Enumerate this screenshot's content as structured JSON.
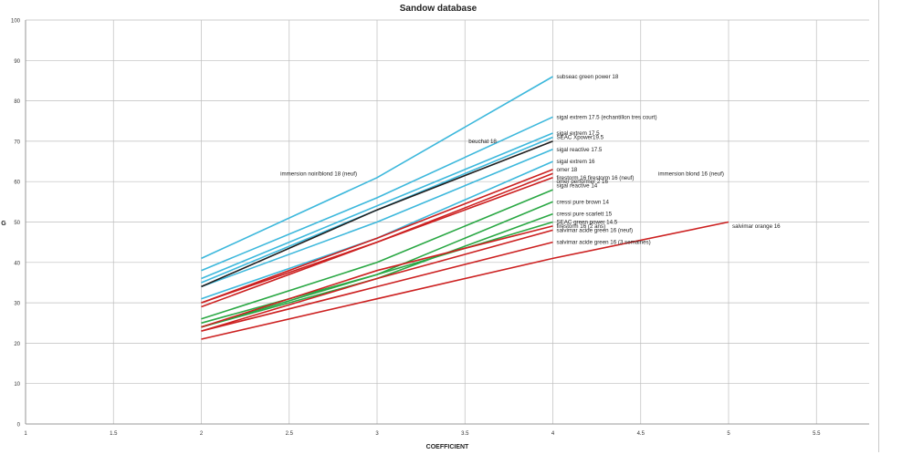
{
  "chart_data": {
    "type": "line",
    "title": "Sandow database",
    "xlabel": "COEFFICIENT",
    "ylabel": "G",
    "xlim": [
      1,
      5.8
    ],
    "ylim": [
      0,
      100
    ],
    "x_ticks": [
      1,
      1.5,
      2,
      2.5,
      3,
      3.5,
      4,
      4.5,
      5,
      5.5
    ],
    "x_tick_labels": [
      "1",
      "1.5",
      "2",
      "2.5",
      "3",
      "3.5",
      "4",
      "4.5",
      "5",
      "5.5"
    ],
    "y_ticks": [
      0,
      10,
      20,
      30,
      40,
      50,
      60,
      70,
      80,
      90,
      100
    ],
    "y_tick_labels": [
      "0",
      "10",
      "20",
      "30",
      "40",
      "50",
      "60",
      "70",
      "80",
      "90",
      "100"
    ],
    "grid": true,
    "legend": "none",
    "series": [
      {
        "name": "subseac green power 18",
        "color": "#3db8dc",
        "x": [
          2,
          3,
          4
        ],
        "y": [
          41,
          61,
          86
        ],
        "label_anchor": [
          4,
          86
        ]
      },
      {
        "name": "sigal extrem 17.5 (echantillon tres court)",
        "color": "#3db8dc",
        "x": [
          2,
          3,
          4
        ],
        "y": [
          38,
          56,
          76
        ],
        "label_anchor": [
          4,
          76
        ]
      },
      {
        "name": "sigal extrem 17.5",
        "color": "#3db8dc",
        "x": [
          2,
          3,
          4
        ],
        "y": [
          36,
          54,
          72
        ],
        "label_anchor": [
          4,
          72
        ]
      },
      {
        "name": "SEAC Xpower19.5",
        "color": "#3db8dc",
        "x": [
          2,
          3,
          4
        ],
        "y": [
          35,
          53,
          71
        ],
        "label_anchor": [
          4,
          71
        ]
      },
      {
        "name": "sigal reactive 17.5",
        "color": "#3db8dc",
        "x": [
          2,
          3,
          4
        ],
        "y": [
          34,
          50,
          68
        ],
        "label_anchor": [
          4,
          68
        ]
      },
      {
        "name": "sigal extrem 16",
        "color": "#3db8dc",
        "x": [
          2,
          3,
          4
        ],
        "y": [
          31,
          46,
          65
        ],
        "label_anchor": [
          4,
          65
        ]
      },
      {
        "name": "beuchat 18",
        "color": "#1f1f1f",
        "x": [
          2,
          3,
          4
        ],
        "y": [
          34,
          53,
          70
        ],
        "label_anchor": [
          3.5,
          70
        ]
      },
      {
        "name": "omer 18",
        "color": "#cc2020",
        "x": [
          2,
          3,
          4
        ],
        "y": [
          30,
          46,
          63
        ],
        "label_anchor": [
          4,
          63
        ]
      },
      {
        "name": "firestorm 16 firestorm 16 (neuf)",
        "color": "#cc2020",
        "x": [
          2,
          3,
          4
        ],
        "y": [
          30,
          45,
          62
        ],
        "label_anchor": [
          4,
          61
        ]
      },
      {
        "name": "omer performer 2 16",
        "color": "#cc2020",
        "x": [
          2,
          3,
          4
        ],
        "y": [
          29,
          45,
          61
        ],
        "label_anchor": [
          4,
          60
        ]
      },
      {
        "name": "sigal reactive 14",
        "color": "#2aa844",
        "x": [
          2,
          3,
          4
        ],
        "y": [
          26,
          40,
          58
        ],
        "label_anchor": [
          4,
          59
        ]
      },
      {
        "name": "cressi pure brown 14",
        "color": "#2aa844",
        "x": [
          2,
          3,
          4
        ],
        "y": [
          25,
          37,
          55
        ],
        "label_anchor": [
          4,
          55
        ]
      },
      {
        "name": "cressi pure scarlett 15",
        "color": "#2aa844",
        "x": [
          2,
          3,
          4
        ],
        "y": [
          24,
          36,
          52
        ],
        "label_anchor": [
          4,
          52
        ]
      },
      {
        "name": "SEAC green power 14.5",
        "color": "#2aa844",
        "x": [
          2,
          3,
          4
        ],
        "y": [
          24,
          37,
          50
        ],
        "label_anchor": [
          4,
          50
        ]
      },
      {
        "name": "firestorm 16 (2 ans)",
        "color": "#cc2020",
        "x": [
          2,
          3,
          4
        ],
        "y": [
          24,
          38,
          49
        ],
        "label_anchor": [
          4,
          49
        ]
      },
      {
        "name": "salvimar acide green 16 (neuf)",
        "color": "#cc2020",
        "x": [
          2,
          3,
          4
        ],
        "y": [
          23,
          36,
          48
        ],
        "label_anchor": [
          4,
          48
        ]
      },
      {
        "name": "salvimar acide green 16 (3 semaines)",
        "color": "#cc2020",
        "x": [
          2,
          3,
          4
        ],
        "y": [
          23,
          34,
          45
        ],
        "label_anchor": [
          4,
          45
        ]
      },
      {
        "name": "salvimar orange 16",
        "color": "#cc2020",
        "x": [
          2,
          3,
          4,
          5
        ],
        "y": [
          21,
          31,
          41,
          50
        ],
        "label_anchor": [
          5,
          49
        ]
      }
    ],
    "annotations": [
      {
        "text": "immersion noir/blond 18 (neuf)",
        "x": 2.45,
        "y": 62
      },
      {
        "text": "immersion blond 16 (neuf)",
        "x": 4.6,
        "y": 62
      }
    ]
  }
}
